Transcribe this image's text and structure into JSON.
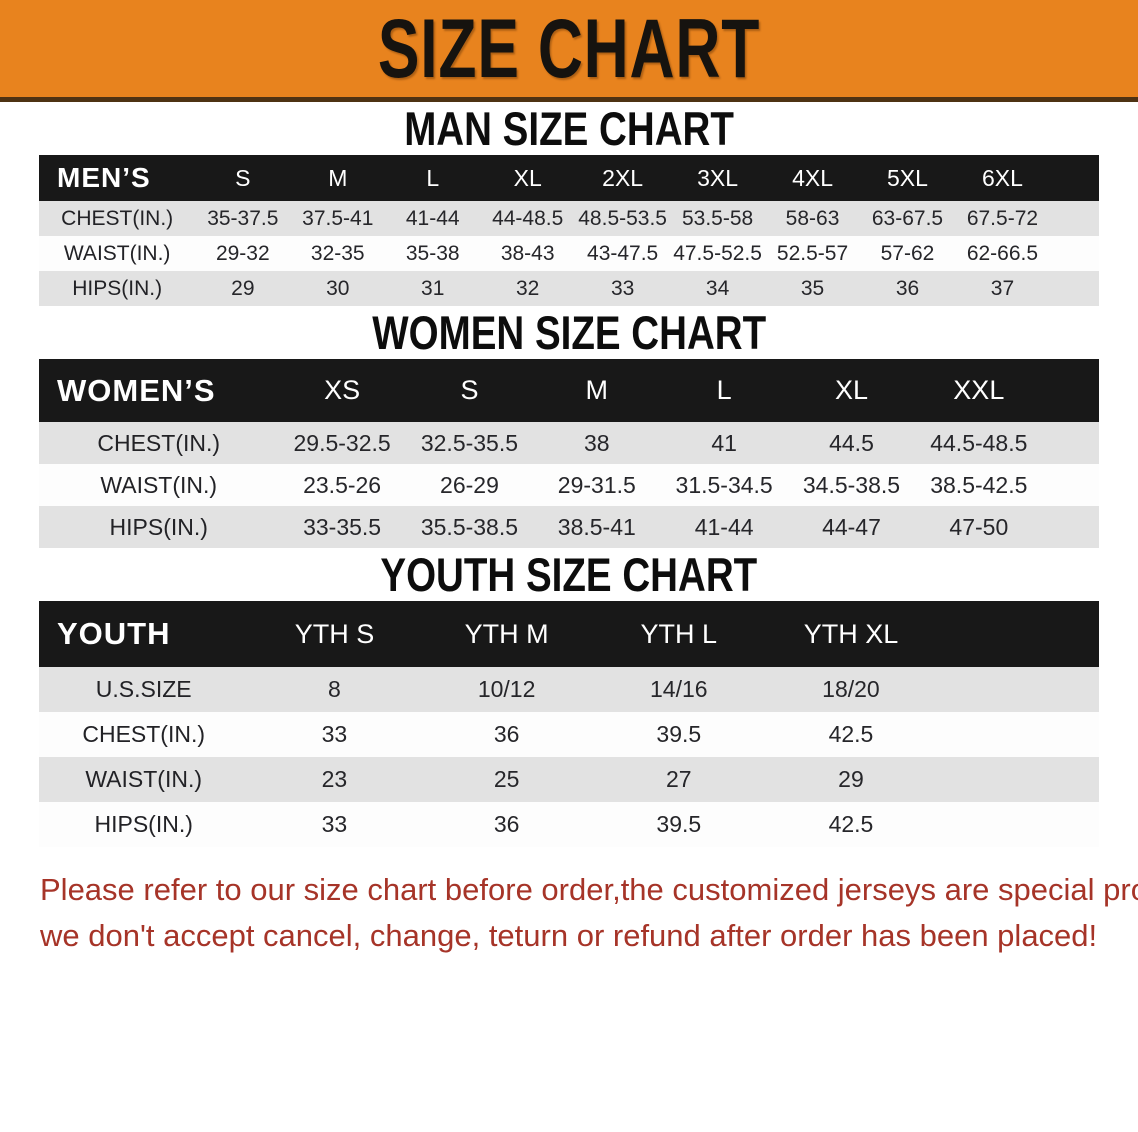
{
  "banner": {
    "title": "SIZE CHART"
  },
  "colors": {
    "banner_bg": "#e8831e",
    "header_bg": "#181818",
    "header_text": "#ffffff",
    "row_alt_bg": "#e2e2e2",
    "disclaimer": "#a63428"
  },
  "sections": [
    {
      "title": "MAN SIZE CHART",
      "corner": "MEN’S",
      "columns": [
        "S",
        "M",
        "L",
        "XL",
        "2XL",
        "3XL",
        "4XL",
        "5XL",
        "6XL"
      ],
      "rows": [
        {
          "label": "CHEST(IN.)",
          "values": [
            "35-37.5",
            "37.5-41",
            "41-44",
            "44-48.5",
            "48.5-53.5",
            "53.5-58",
            "58-63",
            "63-67.5",
            "67.5-72"
          ]
        },
        {
          "label": "WAIST(IN.)",
          "values": [
            "29-32",
            "32-35",
            "35-38",
            "38-43",
            "43-47.5",
            "47.5-52.5",
            "52.5-57",
            "57-62",
            "62-66.5"
          ]
        },
        {
          "label": "HIPS(IN.)",
          "values": [
            "29",
            "30",
            "31",
            "32",
            "33",
            "34",
            "35",
            "36",
            "37"
          ]
        }
      ]
    },
    {
      "title": "WOMEN SIZE CHART",
      "corner": "WOMEN’S",
      "columns": [
        "XS",
        "S",
        "M",
        "L",
        "XL",
        "XXL"
      ],
      "rows": [
        {
          "label": "CHEST(IN.)",
          "values": [
            "29.5-32.5",
            "32.5-35.5",
            "38",
            "41",
            "44.5",
            "44.5-48.5"
          ]
        },
        {
          "label": "WAIST(IN.)",
          "values": [
            "23.5-26",
            "26-29",
            "29-31.5",
            "31.5-34.5",
            "34.5-38.5",
            "38.5-42.5"
          ]
        },
        {
          "label": "HIPS(IN.)",
          "values": [
            "33-35.5",
            "35.5-38.5",
            "38.5-41",
            "41-44",
            "44-47",
            "47-50"
          ]
        }
      ]
    },
    {
      "title": "YOUTH SIZE CHART",
      "corner": "YOUTH",
      "columns": [
        "YTH S",
        "YTH M",
        "YTH L",
        "YTH XL"
      ],
      "rows": [
        {
          "label": "U.S.SIZE",
          "values": [
            "8",
            "10/12",
            "14/16",
            "18/20"
          ]
        },
        {
          "label": "CHEST(IN.)",
          "values": [
            "33",
            "36",
            "39.5",
            "42.5"
          ]
        },
        {
          "label": "WAIST(IN.)",
          "values": [
            "23",
            "25",
            "27",
            "29"
          ]
        },
        {
          "label": "HIPS(IN.)",
          "values": [
            "33",
            "36",
            "39.5",
            "42.5"
          ]
        }
      ]
    }
  ],
  "disclaimer": {
    "line1": "Please refer to our size chart before order,the customized jerseys are special products,",
    "line2": "we don't accept cancel, change, teturn or refund after order has been placed!"
  }
}
